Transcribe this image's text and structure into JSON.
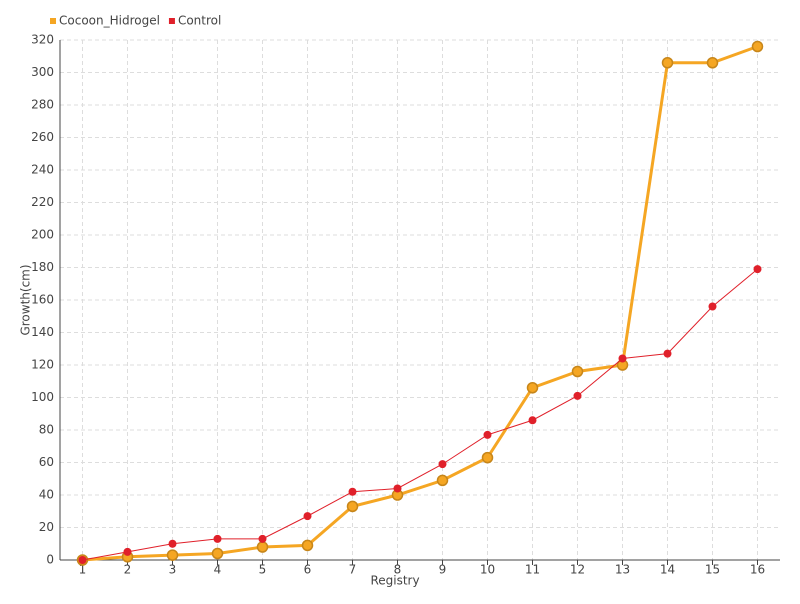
{
  "chart_data": {
    "type": "line",
    "x_label": "Registry",
    "y_label": "Growth(cm)",
    "categories": [
      "1",
      "2",
      "3",
      "4",
      "5",
      "6",
      "7",
      "8",
      "9",
      "10",
      "11",
      "12",
      "13",
      "14",
      "15",
      "16"
    ],
    "series": [
      {
        "name": "Cocoon_Hidrogel",
        "color": "#f5a623",
        "values": [
          0,
          2,
          3,
          4,
          8,
          9,
          33,
          40,
          49,
          63,
          106,
          116,
          120,
          306,
          306,
          316
        ]
      },
      {
        "name": "Control",
        "color": "#e0202a",
        "values": [
          0,
          5,
          10,
          13,
          13,
          27,
          42,
          44,
          59,
          77,
          86,
          101,
          124,
          127,
          156,
          179
        ]
      }
    ],
    "ylim": [
      0,
      320
    ],
    "yticks": [
      0,
      20,
      40,
      60,
      80,
      100,
      120,
      140,
      160,
      180,
      200,
      220,
      240,
      260,
      280,
      300,
      320
    ],
    "grid": true,
    "legend": "top-left"
  }
}
